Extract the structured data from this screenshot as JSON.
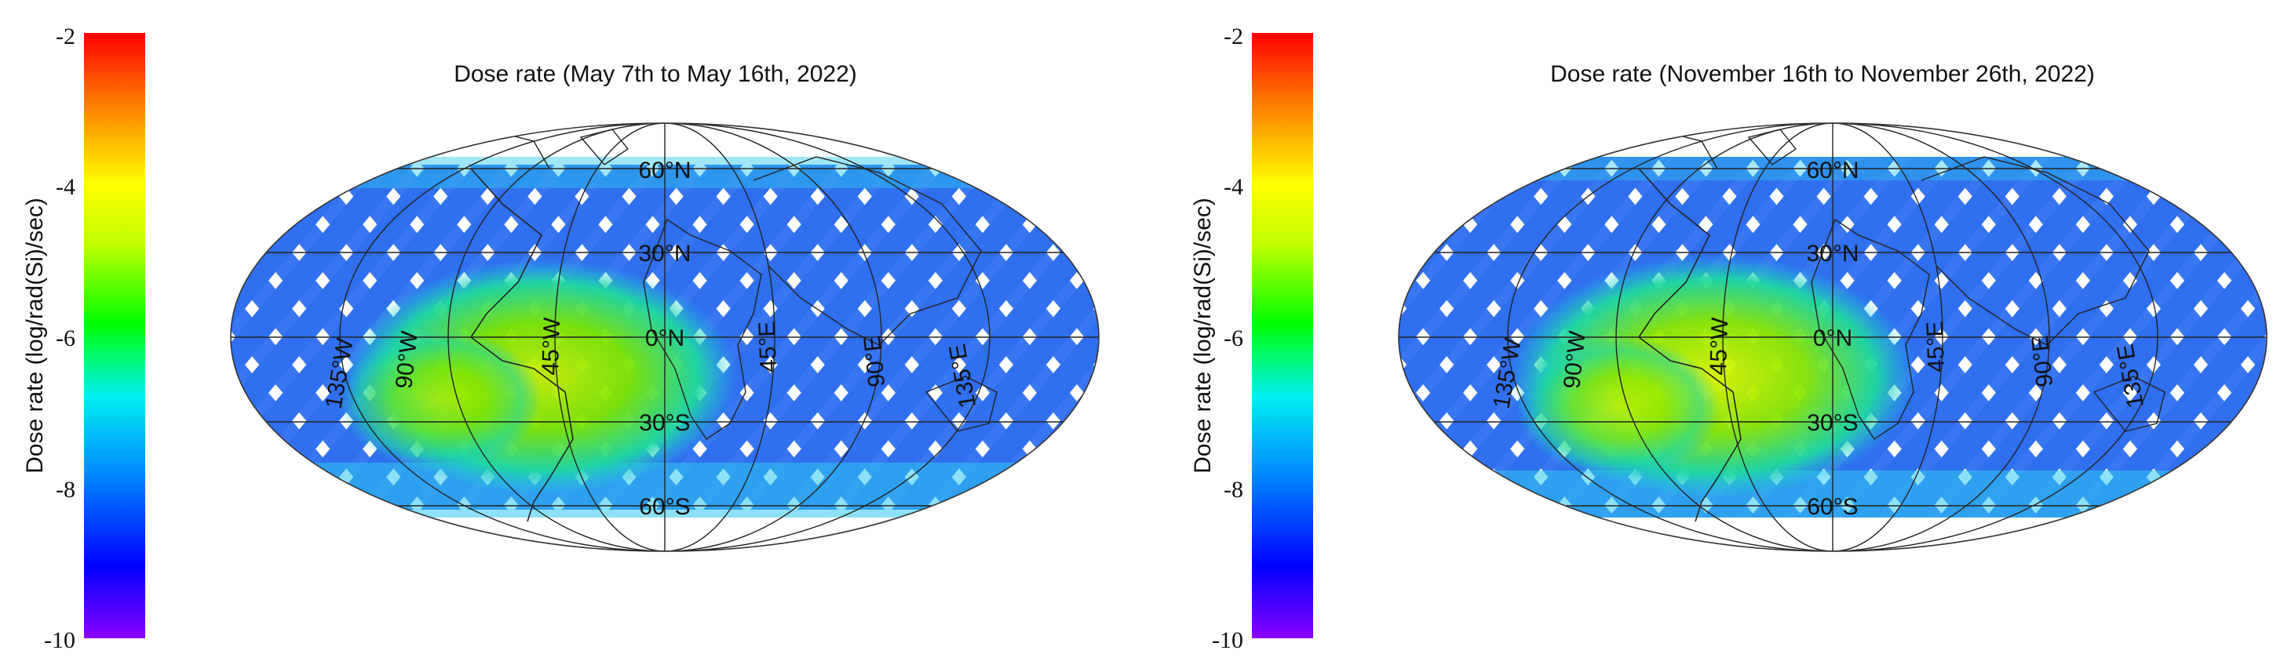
{
  "panels": [
    {
      "title": "Dose rate (May 7th to May 16th, 2022)",
      "colorbar": {
        "label": "Dose rate (log/rad(Si)/sec)",
        "ticks": [
          "-2",
          "-4",
          "-6",
          "-8",
          "-10"
        ],
        "min": -10,
        "max": -2,
        "colors": [
          "#8a00ff",
          "#0000ff",
          "#0090ff",
          "#00f0f0",
          "#00ff00",
          "#c0ff00",
          "#ffff00",
          "#ff8000",
          "#ff0000"
        ]
      },
      "map": {
        "projection": "Hammer-Aitoff (equal-area ellipse)",
        "lat_labels": [
          "60°N",
          "30°N",
          "0°N",
          "30°S",
          "60°S"
        ],
        "lon_labels": [
          "135°W",
          "90°W",
          "45°W",
          "45°E",
          "90°E",
          "135°E"
        ],
        "background_dose_color": "#2f6ff0",
        "anomaly_color": "#8fe000",
        "anomaly_region": "South Atlantic Anomaly"
      }
    },
    {
      "title": "Dose rate (November 16th to November 26th, 2022)",
      "colorbar": {
        "label": "Dose rate (log/rad(Si)/sec)",
        "ticks": [
          "-2",
          "-4",
          "-6",
          "-8",
          "-10"
        ],
        "min": -10,
        "max": -2,
        "colors": [
          "#8a00ff",
          "#0000ff",
          "#0090ff",
          "#00f0f0",
          "#00ff00",
          "#c0ff00",
          "#ffff00",
          "#ff8000",
          "#ff0000"
        ]
      },
      "map": {
        "projection": "Hammer-Aitoff (equal-area ellipse)",
        "lat_labels": [
          "60°N",
          "30°N",
          "0°N",
          "30°S",
          "60°S"
        ],
        "lon_labels": [
          "135°W",
          "90°W",
          "45°W",
          "45°E",
          "90°E",
          "135°E"
        ],
        "background_dose_color": "#2f6ff0",
        "anomaly_color": "#a8e800",
        "anomaly_region": "South Atlantic Anomaly"
      }
    }
  ]
}
